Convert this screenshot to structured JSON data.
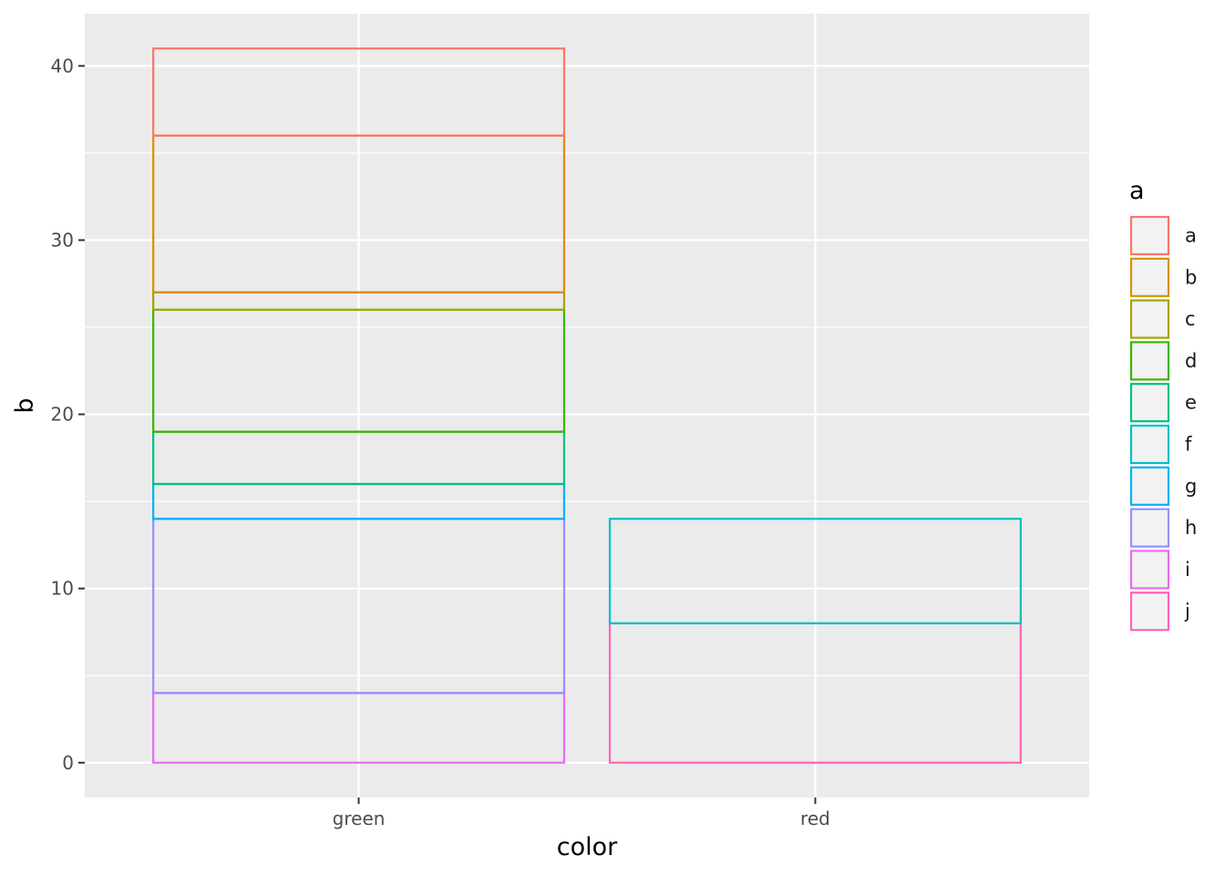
{
  "chart_data": {
    "type": "bar",
    "stacked": true,
    "fill": "none",
    "categories": [
      "green",
      "red"
    ],
    "xlabel": "color",
    "ylabel": "b",
    "ylim": [
      -2,
      43
    ],
    "yticks": [
      0,
      10,
      20,
      30,
      40
    ],
    "grid": true,
    "legend": {
      "title": "a",
      "position": "right"
    },
    "series": [
      {
        "name": "a",
        "color": "#F8766D",
        "values": [
          5,
          0
        ]
      },
      {
        "name": "b",
        "color": "#D89000",
        "values": [
          9,
          0
        ]
      },
      {
        "name": "c",
        "color": "#A3A500",
        "values": [
          1,
          0
        ]
      },
      {
        "name": "d",
        "color": "#39B600",
        "values": [
          7,
          0
        ]
      },
      {
        "name": "e",
        "color": "#00BF7D",
        "values": [
          3,
          0
        ]
      },
      {
        "name": "f",
        "color": "#00BFC4",
        "values": [
          0,
          6
        ]
      },
      {
        "name": "g",
        "color": "#00B0F6",
        "values": [
          2,
          0
        ]
      },
      {
        "name": "h",
        "color": "#9590FF",
        "values": [
          10,
          0
        ]
      },
      {
        "name": "i",
        "color": "#E76BF3",
        "values": [
          4,
          0
        ]
      },
      {
        "name": "j",
        "color": "#FF62BC",
        "values": [
          0,
          8
        ]
      }
    ]
  }
}
